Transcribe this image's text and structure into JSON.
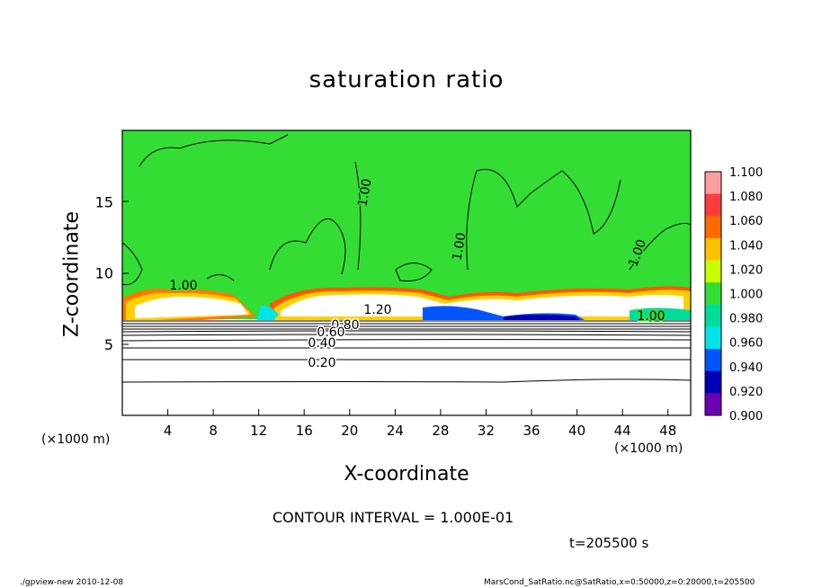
{
  "chart_data": {
    "type": "heatmap",
    "title": "saturation ratio",
    "xlabel": "X-coordinate",
    "ylabel": "Z-coordinate",
    "x_unit": "(×1000 m)",
    "x_unit_right": "(×1000 m)",
    "xlim": [
      0,
      50
    ],
    "ylim": [
      0,
      20
    ],
    "x_ticks": [
      "4",
      "8",
      "12",
      "16",
      "20",
      "24",
      "28",
      "32",
      "36",
      "40",
      "44",
      "48"
    ],
    "y_ticks": [
      "5",
      "10",
      "15"
    ],
    "colorbar": {
      "levels": [
        "1.100",
        "1.080",
        "1.060",
        "1.040",
        "1.020",
        "1.000",
        "0.980",
        "0.960",
        "0.940",
        "0.920",
        "0.900"
      ],
      "colors": [
        "#ff9e9e",
        "#ff3c3c",
        "#ff6a00",
        "#ffc000",
        "#c8ff00",
        "#33dd33",
        "#00dd99",
        "#00e6e6",
        "#0055ff",
        "#0000b4",
        "#6a00b4"
      ]
    },
    "contour_labels": [
      "1.00",
      "1.00",
      "1.00",
      "1.00",
      "1.00",
      "1.20",
      "0.80",
      "0.60",
      "0.40",
      "0.20"
    ],
    "contour_interval": "CONTOUR INTERVAL = 1.000E-01",
    "time": "t=205500 s"
  },
  "footer": {
    "left": "./gpview-new   2010-12-08",
    "right": "MarsCond_SatRatio.nc@SatRatio,x=0:50000,z=0:20000,t=205500"
  }
}
